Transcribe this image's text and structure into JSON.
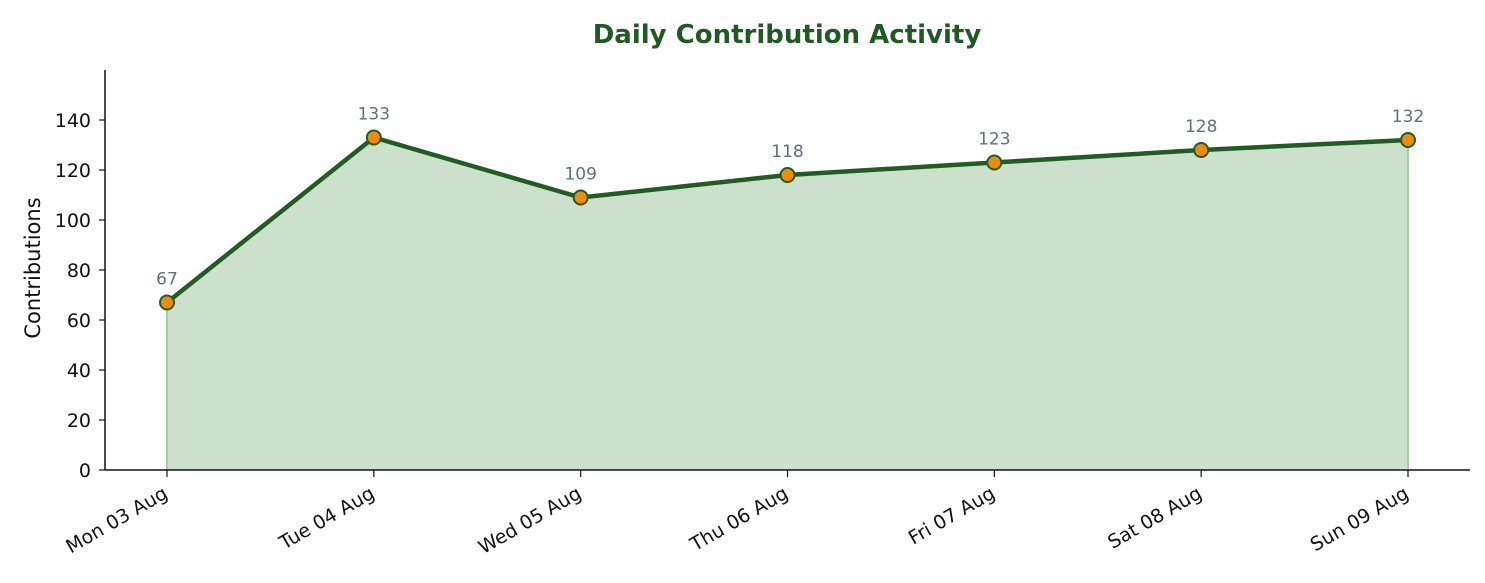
{
  "chart_data": {
    "type": "area",
    "title": "Daily Contribution Activity",
    "xlabel": "",
    "ylabel": "Contributions",
    "categories": [
      "Mon 03 Aug",
      "Tue 04 Aug",
      "Wed 05 Aug",
      "Thu 06 Aug",
      "Fri 07 Aug",
      "Sat 08 Aug",
      "Sun 09 Aug"
    ],
    "series": [
      {
        "values": [
          67,
          133,
          109,
          118,
          123,
          128,
          132
        ]
      }
    ],
    "ylim": [
      0,
      160
    ],
    "yticks": [
      0,
      20,
      40,
      60,
      80,
      100,
      120,
      140
    ],
    "grid": false,
    "data_labels": true,
    "colors": {
      "title": "#1e5a22",
      "line": "#1f5d23",
      "fill": "#cde0cc",
      "fill_edge": "#a9cca8",
      "marker_fill": "#f08c0a",
      "marker_stroke": "#1f5d23",
      "data_label": "#5b7083",
      "axis": "#111111"
    }
  }
}
